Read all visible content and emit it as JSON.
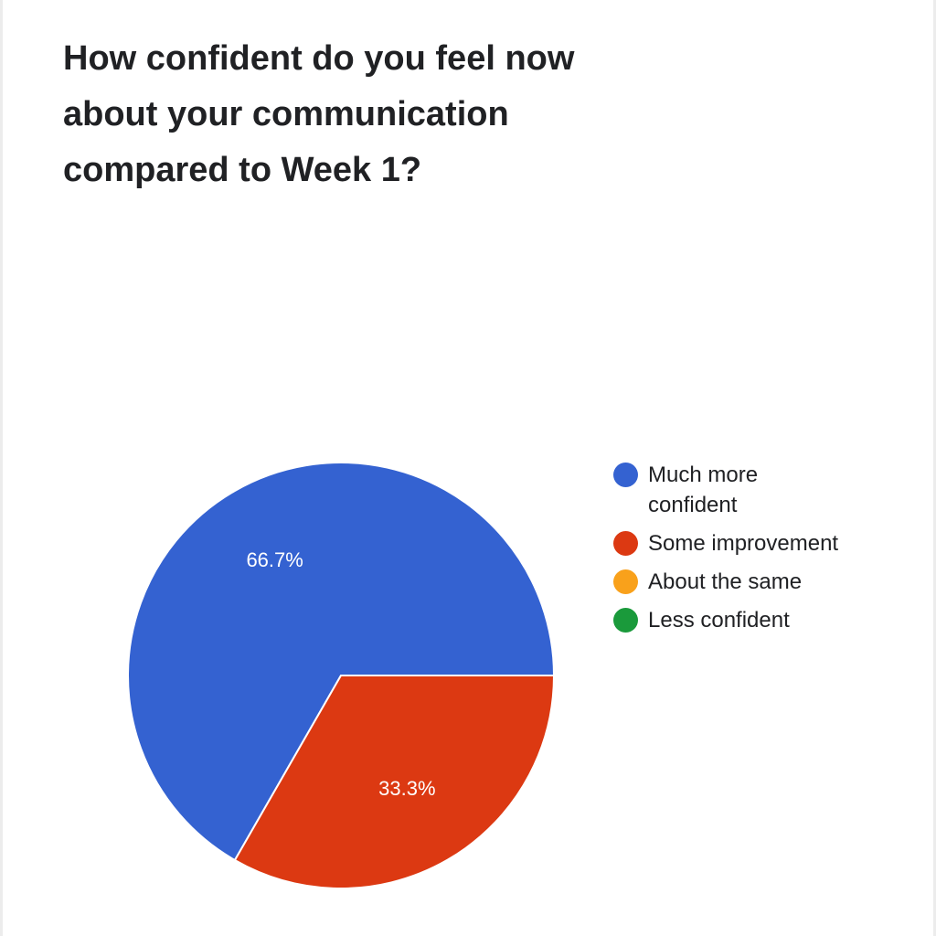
{
  "chart_data": {
    "type": "pie",
    "title": "How confident do you feel now about your communication compared to Week 1?",
    "slices": [
      {
        "label": "Much more confident",
        "value": 66.7,
        "display": "66.7%",
        "color": "#3462d1"
      },
      {
        "label": "Some improvement",
        "value": 33.3,
        "display": "33.3%",
        "color": "#dc3912"
      },
      {
        "label": "About the same",
        "value": 0,
        "display": "",
        "color": "#f9a11b"
      },
      {
        "label": "Less confident",
        "value": 0,
        "display": "",
        "color": "#1a9a3b"
      }
    ],
    "legend_position": "right"
  }
}
